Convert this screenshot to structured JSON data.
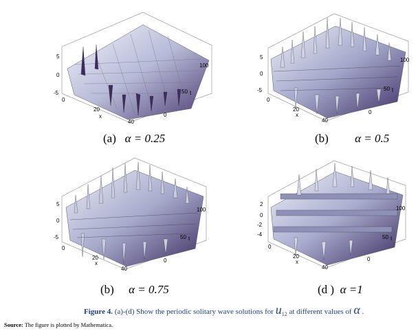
{
  "panels": [
    {
      "caption_letter": "(a)",
      "caption_alpha": "α = 0.25",
      "axis_labels": {
        "z_ticks": [
          "5",
          "0",
          "-5"
        ],
        "x_ticks": [
          "0",
          "20",
          "40"
        ],
        "x_label": "x",
        "y_ticks": [
          "0",
          "50",
          "100"
        ],
        "y_label": "t"
      }
    },
    {
      "caption_letter": "(b)",
      "caption_alpha": "α = 0.5",
      "axis_labels": {
        "z_ticks": [
          "5",
          "0",
          "-5"
        ],
        "x_ticks": [
          "0",
          "20",
          "40"
        ],
        "x_label": "x",
        "y_ticks": [
          "0",
          "50",
          "100"
        ],
        "y_label": "t"
      }
    },
    {
      "caption_letter": "(b)",
      "caption_alpha": "α = 0.75",
      "axis_labels": {
        "z_ticks": [
          "5",
          "0",
          "-5"
        ],
        "x_ticks": [
          "0",
          "20",
          "40"
        ],
        "x_label": "x",
        "y_ticks": [
          "0",
          "50",
          "100"
        ],
        "y_label": "t"
      }
    },
    {
      "caption_letter": "(d )",
      "caption_alpha": "α =1",
      "axis_labels": {
        "z_ticks": [
          "2",
          "0",
          "-2",
          "-4"
        ],
        "x_ticks": [
          "0",
          "20",
          "40"
        ],
        "x_label": "x",
        "y_ticks": [
          "0",
          "50",
          "100"
        ],
        "y_label": "t"
      }
    }
  ],
  "figure_caption": {
    "label": "Figure 4.",
    "text_before": "(a)-(d) Show the periodic solitary wave solutions for",
    "symbol": "u",
    "symbol_sub": "12",
    "text_after": "at different values of",
    "alpha_symbol": "α",
    "end": "."
  },
  "source": {
    "label": "Source:",
    "text": "The figure is plotted by Mathematica."
  },
  "colors": {
    "surface_light": "#e8ebf5",
    "surface_mid": "#9a9bc0",
    "surface_dark": "#3a2a5c",
    "caption_blue": "#1f3f8f"
  },
  "icons": {
    "surface": "3d-surface-plot"
  }
}
